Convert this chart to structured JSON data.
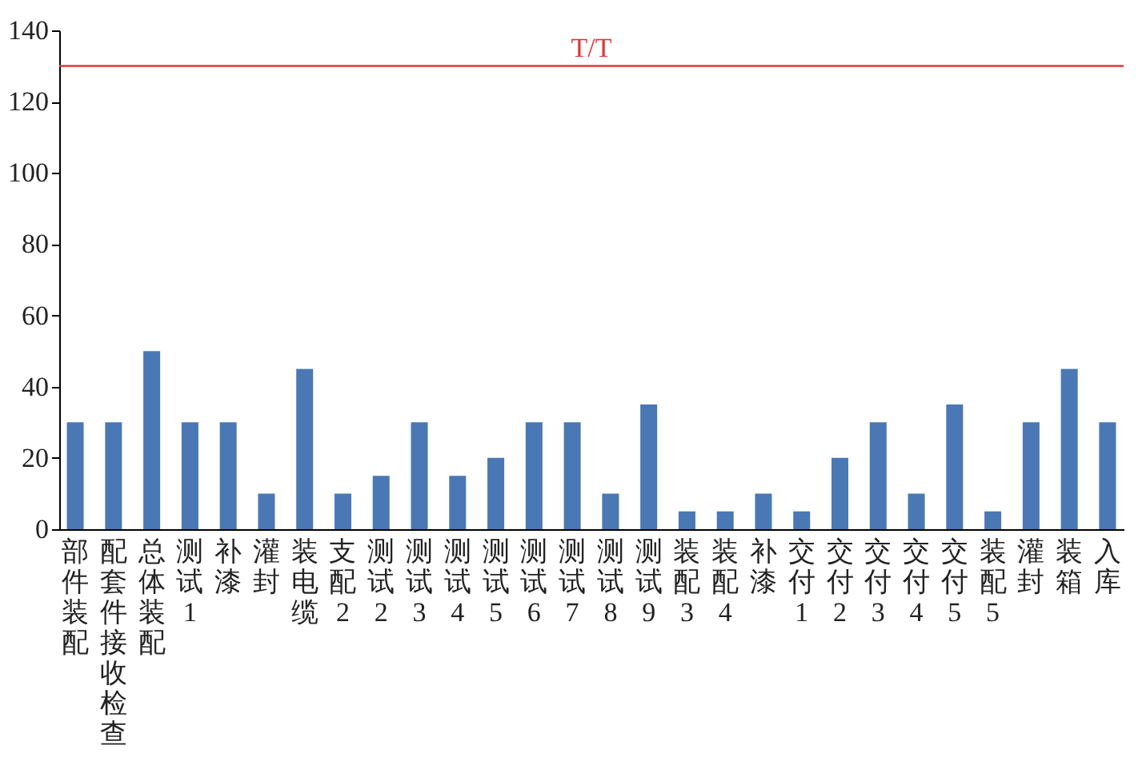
{
  "chart_data": {
    "type": "bar",
    "categories": [
      "部件装配",
      "配套件接收检查",
      "总体装配",
      "测试1",
      "补漆",
      "灌封",
      "装电缆",
      "支配2",
      "测试2",
      "测试3",
      "测试4",
      "测试5",
      "测试6",
      "测试7",
      "测试8",
      "测试9",
      "装配3",
      "装配4",
      "补漆",
      "交付1",
      "交付2",
      "交付3",
      "交付4",
      "交付5",
      "装配5",
      "灌封",
      "装箱",
      "入库"
    ],
    "values": [
      30,
      30,
      50,
      30,
      30,
      10,
      45,
      10,
      15,
      30,
      15,
      20,
      30,
      30,
      10,
      35,
      5,
      5,
      10,
      5,
      20,
      30,
      10,
      35,
      5,
      30,
      45,
      30
    ],
    "color": "#4a78b4",
    "ylim": [
      0,
      140
    ],
    "yticks": [
      0,
      20,
      40,
      60,
      80,
      100,
      120,
      140
    ],
    "grid": false,
    "ref_lines": [
      {
        "axis": "y",
        "value": 130,
        "label": "T/T",
        "color": "#e0363c"
      }
    ]
  }
}
